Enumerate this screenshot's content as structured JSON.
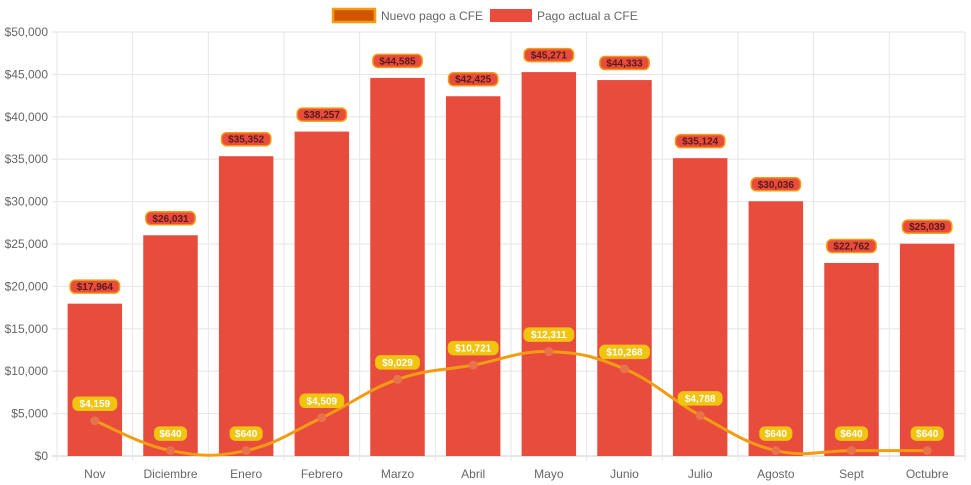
{
  "chart_data": {
    "type": "bar",
    "categories": [
      "Nov",
      "Diciembre",
      "Enero",
      "Febrero",
      "Marzo",
      "Abril",
      "Mayo",
      "Junio",
      "Julio",
      "Agosto",
      "Sept",
      "Octubre"
    ],
    "series": [
      {
        "name": "Nuevo pago a CFE",
        "type": "line",
        "values": [
          4159,
          640,
          640,
          4509,
          9029,
          10721,
          12311,
          10268,
          4788,
          640,
          640,
          640
        ],
        "labels": [
          "$4,159",
          "$640",
          "$640",
          "$4,509",
          "$9,029",
          "$10,721",
          "$12,311",
          "$10,268",
          "$4,788",
          "$640",
          "$640",
          "$640"
        ],
        "color": "#f39c12",
        "point_color": "#e8734a",
        "label_bg": "#f1c40f",
        "label_text_color": "#ffffff"
      },
      {
        "name": "Pago actual a CFE",
        "type": "bar",
        "values": [
          17964,
          26031,
          35352,
          38257,
          44585,
          42425,
          45271,
          44333,
          35124,
          30036,
          22762,
          25039
        ],
        "labels": [
          "$17,964",
          "$26,031",
          "$35,352",
          "$38,257",
          "$44,585",
          "$42,425",
          "$45,271",
          "$44,333",
          "$35,124",
          "$30,036",
          "$22,762",
          "$25,039"
        ],
        "color": "#e74c3c",
        "label_bg": "#e74c3c",
        "label_border": "#f39c12",
        "label_text_color": "#5b1a1a"
      }
    ],
    "title": "",
    "xlabel": "",
    "ylabel": "",
    "ylim": [
      0,
      50000
    ],
    "yticks": [
      0,
      5000,
      10000,
      15000,
      20000,
      25000,
      30000,
      35000,
      40000,
      45000,
      50000
    ],
    "ytick_labels": [
      "$0",
      "$5,000",
      "$10,000",
      "$15,000",
      "$20,000",
      "$25,000",
      "$30,000",
      "$35,000",
      "$40,000",
      "$45,000",
      "$50,000"
    ],
    "grid": true,
    "legend_position": "top-center"
  }
}
